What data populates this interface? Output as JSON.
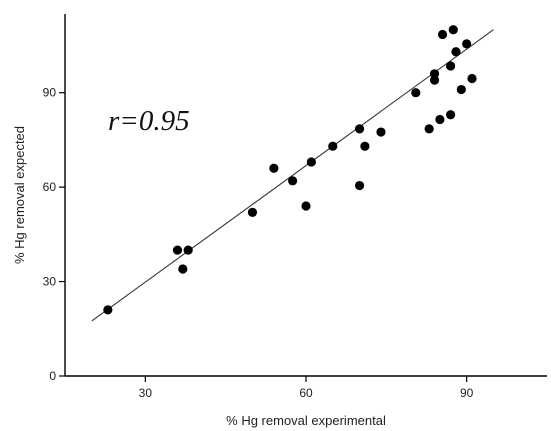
{
  "chart_data": {
    "type": "scatter",
    "xlabel": "% Hg removal experimental",
    "ylabel": "% Hg removal expected",
    "xlim": [
      15,
      105
    ],
    "ylim": [
      0,
      115
    ],
    "xticks": [
      30,
      60,
      90
    ],
    "yticks": [
      0,
      30,
      60,
      90
    ],
    "grid": false,
    "annotation": "r=0.95",
    "point_color": "#000000",
    "points": [
      {
        "x": 23,
        "y": 21
      },
      {
        "x": 36,
        "y": 40
      },
      {
        "x": 37,
        "y": 34
      },
      {
        "x": 38,
        "y": 40
      },
      {
        "x": 50,
        "y": 52
      },
      {
        "x": 54,
        "y": 66
      },
      {
        "x": 57.5,
        "y": 62
      },
      {
        "x": 60,
        "y": 54
      },
      {
        "x": 61,
        "y": 68
      },
      {
        "x": 65,
        "y": 73
      },
      {
        "x": 70,
        "y": 78.5
      },
      {
        "x": 70,
        "y": 60.5
      },
      {
        "x": 71,
        "y": 73
      },
      {
        "x": 74,
        "y": 77.5
      },
      {
        "x": 80.5,
        "y": 90
      },
      {
        "x": 83,
        "y": 78.5
      },
      {
        "x": 84,
        "y": 94
      },
      {
        "x": 84,
        "y": 96
      },
      {
        "x": 85,
        "y": 81.5
      },
      {
        "x": 85.5,
        "y": 108.5
      },
      {
        "x": 87,
        "y": 83
      },
      {
        "x": 87,
        "y": 98.5
      },
      {
        "x": 87.5,
        "y": 110
      },
      {
        "x": 88,
        "y": 103
      },
      {
        "x": 89,
        "y": 91
      },
      {
        "x": 90,
        "y": 105.5
      },
      {
        "x": 91,
        "y": 94.5
      }
    ],
    "fit_line": {
      "x": [
        20,
        95
      ],
      "y": [
        17.5,
        110
      ]
    }
  }
}
